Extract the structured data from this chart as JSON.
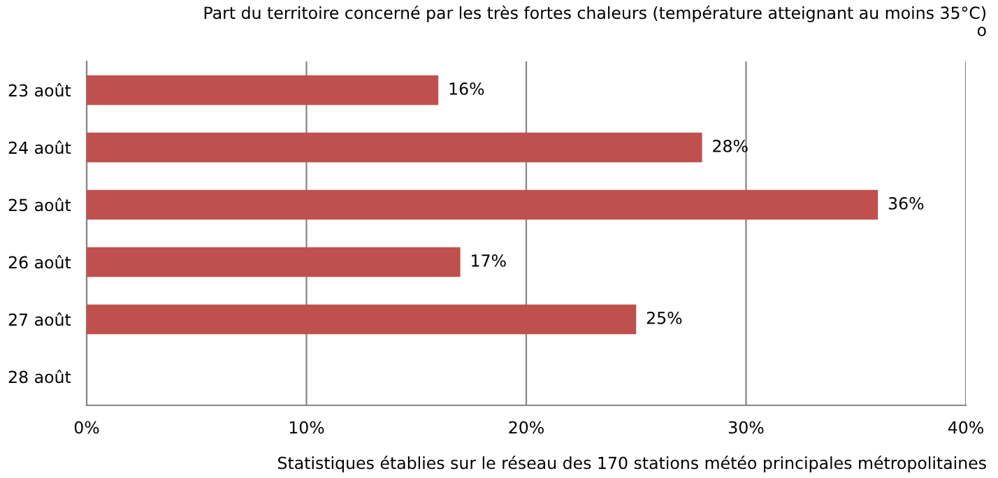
{
  "chart_data": {
    "type": "bar",
    "orientation": "horizontal",
    "title": "Part du territoire concerné par les très fortes chaleurs (température atteignant au moins 35°C)\no",
    "categories": [
      "23 août",
      "24 août",
      "25 août",
      "26 août",
      "27 août",
      "28 août"
    ],
    "values": [
      16,
      28,
      36,
      17,
      25,
      null
    ],
    "value_labels": [
      "16%",
      "28%",
      "36%",
      "17%",
      "25%",
      null
    ],
    "color": "#c0504d",
    "xlim": [
      0,
      40
    ],
    "xticks": [
      {
        "value": 0,
        "label": "0%"
      },
      {
        "value": 10,
        "label": "10%"
      },
      {
        "value": 20,
        "label": "20%"
      },
      {
        "value": 30,
        "label": "30%"
      },
      {
        "value": 40,
        "label": "40%"
      }
    ],
    "grid": "x",
    "annotations": [
      "Statistiques établies sur le réseau des 170 stations météo principales métropolitaines"
    ]
  }
}
